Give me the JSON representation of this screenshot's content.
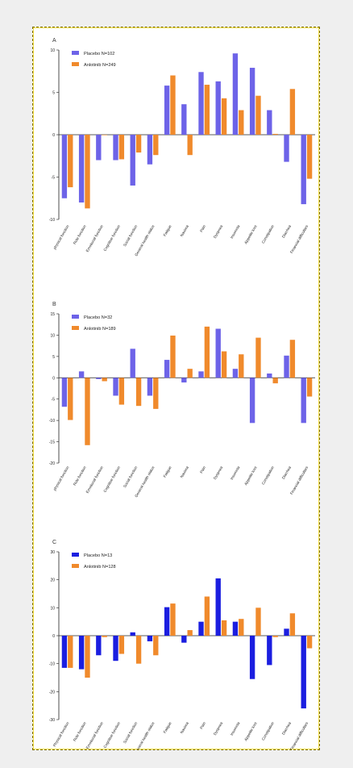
{
  "categories": [
    "physical function",
    "Role function",
    "Emotional function",
    "Cognitive function",
    "Social function",
    "General health status",
    "Fatigue",
    "Nausea",
    "Pain",
    "Dyspnea",
    "Insomnia",
    "Appetite loss",
    "Constipation",
    "Diarrhea",
    "Financial difficulties"
  ],
  "categories_c": [
    "Physical function",
    "Role function",
    "Emotional function",
    "Cognitive function",
    "Social function",
    "General health status",
    "Fatigue",
    "Nausea",
    "Pain",
    "Dyspnea",
    "Insomnia",
    "Appetite loss",
    "Constipation",
    "Diarrhea",
    "Financial difficulties"
  ],
  "colors": {
    "placebo_a": "#6d63e8",
    "placebo_b": "#6d63e8",
    "placebo_c": "#1b1ee0",
    "anlotinib": "#f08a2c",
    "frame_border": "#7a6a00",
    "frame_glow": "#f4e04a"
  },
  "chart_data": [
    {
      "type": "bar",
      "panel": "A",
      "ylim": [
        -10,
        10
      ],
      "yticks": [
        -10,
        -5,
        0,
        5,
        10
      ],
      "legend_position": "top-left",
      "grid": false,
      "series": [
        {
          "name": "Placebo",
          "legend": "Placebo  N=102",
          "values": [
            -7.5,
            -8,
            -3,
            -3,
            -6,
            -3.5,
            5.8,
            3.6,
            7.4,
            6.3,
            9.6,
            7.9,
            2.9,
            -3.2,
            -8.2
          ]
        },
        {
          "name": "Anlotinib",
          "legend": "Anlotinib N=249",
          "values": [
            -6.2,
            -8.7,
            0,
            -2.9,
            -2.1,
            -2.4,
            7,
            -2.4,
            5.9,
            4.3,
            2.9,
            4.6,
            0.1,
            5.4,
            -5.2
          ]
        }
      ]
    },
    {
      "type": "bar",
      "panel": "B",
      "ylim": [
        -20,
        15
      ],
      "yticks": [
        -20,
        -15,
        -10,
        -5,
        0,
        5,
        10,
        15
      ],
      "legend_position": "top-left",
      "grid": false,
      "series": [
        {
          "name": "Placebo",
          "legend": "Placebo  N=32",
          "values": [
            -6.8,
            1.5,
            -0.3,
            -4.2,
            6.8,
            -4.2,
            4.2,
            -1.1,
            1.5,
            11.5,
            2.1,
            -10.6,
            1.0,
            5.2,
            -10.6
          ]
        },
        {
          "name": "Anlotinib",
          "legend": "Anlotinib N=189",
          "values": [
            -9.9,
            -15.8,
            -0.8,
            -6.3,
            -6.6,
            -7.3,
            9.9,
            2.1,
            12.0,
            6.2,
            5.5,
            9.4,
            -1.3,
            8.9,
            -4.4
          ]
        }
      ]
    },
    {
      "type": "bar",
      "panel": "C",
      "ylim": [
        -30,
        30
      ],
      "yticks": [
        -30,
        -20,
        -10,
        0,
        10,
        20,
        30
      ],
      "legend_position": "top-left",
      "grid": false,
      "series": [
        {
          "name": "Placebo",
          "legend": "Placebo  N=13",
          "values": [
            -11.5,
            -12.0,
            -7.0,
            -9.0,
            1.2,
            -2.0,
            10.2,
            -2.5,
            5.0,
            20.5,
            5.0,
            -15.5,
            -10.5,
            2.5,
            -26.0
          ]
        },
        {
          "name": "Anlotinib",
          "legend": "Anlotinib N=128",
          "values": [
            -11.5,
            -15.0,
            -0.5,
            -6.5,
            -10.0,
            -7.0,
            11.5,
            2.0,
            14.0,
            5.5,
            6.0,
            10.0,
            -0.5,
            8.0,
            -4.5
          ]
        }
      ]
    }
  ]
}
